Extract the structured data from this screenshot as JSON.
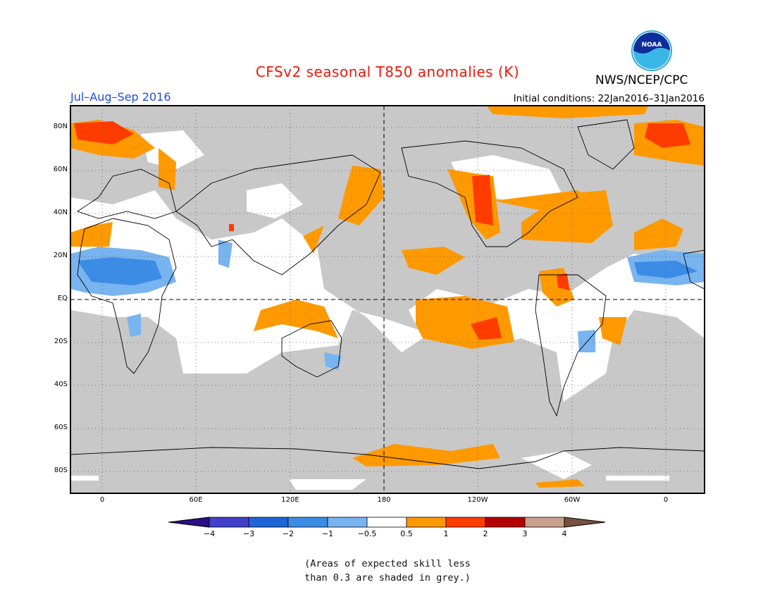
{
  "title": "CFSv2 seasonal T850 anomalies (K)",
  "season": "Jul–Aug–Sep 2016",
  "initial_conditions": "Initial conditions: 22Jan2016–31Jan2016",
  "organization": "NWS/NCEP/CPC",
  "logo_text": "NOAA",
  "lat_labels": [
    "80N",
    "60N",
    "40N",
    "20N",
    "EQ",
    "20S",
    "40S",
    "60S",
    "80S"
  ],
  "lon_labels": [
    "0",
    "60E",
    "120E",
    "180",
    "120W",
    "60W",
    "0"
  ],
  "colorbar": {
    "labels": [
      "−4",
      "−3",
      "−2",
      "−1",
      "−0.5",
      "0.5",
      "1",
      "2",
      "3",
      "4"
    ],
    "colors": [
      "#2a0f86",
      "#4040c8",
      "#1e64d4",
      "#3c8ce6",
      "#78b4f0",
      "#ffffff",
      "#ff9900",
      "#ff3c00",
      "#b40000",
      "#c8a08c",
      "#785040"
    ]
  },
  "skill_note_line1": "(Areas of expected skill less",
  "skill_note_line2": "than 0.3 are shaded in grey.)",
  "skill_shade_color": "#c8c8c8"
}
